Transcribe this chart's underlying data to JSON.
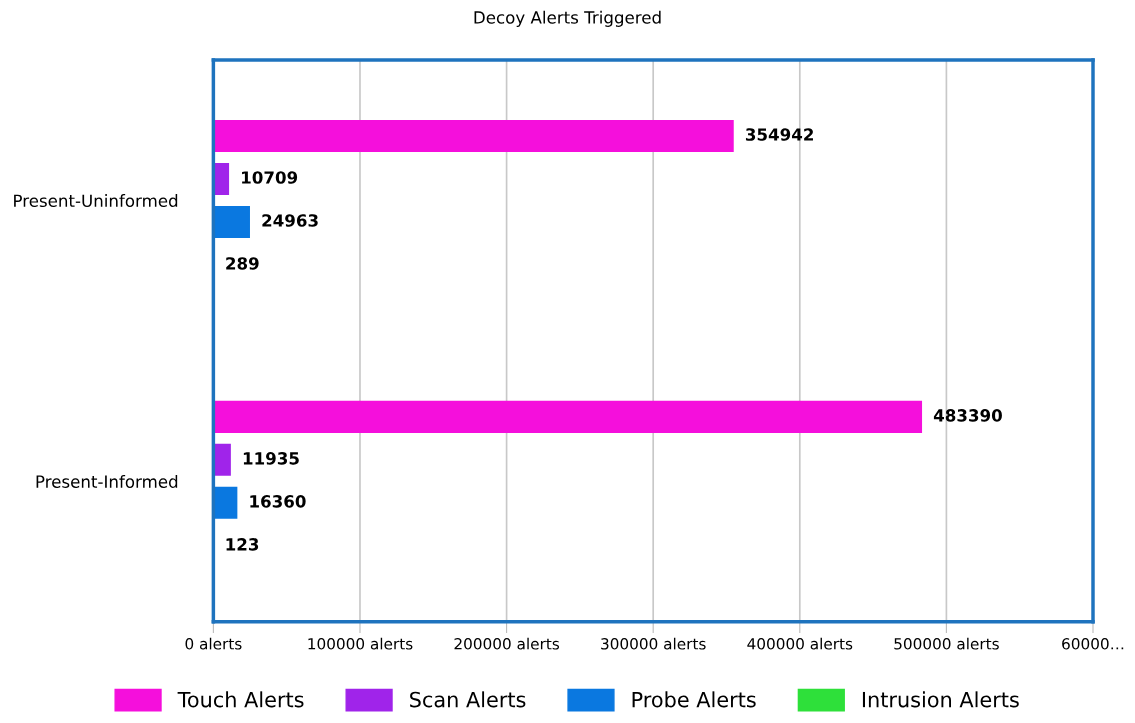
{
  "chart_data": {
    "type": "bar",
    "orientation": "horizontal",
    "title": "Decoy Alerts Triggered",
    "categories": [
      "Present-Uninformed",
      "Present-Informed"
    ],
    "series": [
      {
        "name": "Touch Alerts",
        "color": "#f50fdc",
        "values": [
          354942,
          483390
        ]
      },
      {
        "name": "Scan Alerts",
        "color": "#a024ea",
        "values": [
          10709,
          11935
        ]
      },
      {
        "name": "Probe Alerts",
        "color": "#0a78e0",
        "values": [
          24963,
          16360
        ]
      },
      {
        "name": "Intrusion Alerts",
        "color": "#2ee03a",
        "values": [
          289,
          123
        ]
      }
    ],
    "xlim": [
      0,
      600000
    ],
    "xticks": [
      {
        "value": 0,
        "label": "0 alerts"
      },
      {
        "value": 100000,
        "label": "100000 alerts"
      },
      {
        "value": 200000,
        "label": "200000 alerts"
      },
      {
        "value": 300000,
        "label": "300000 alerts"
      },
      {
        "value": 400000,
        "label": "400000 alerts"
      },
      {
        "value": 500000,
        "label": "500000 alerts"
      },
      {
        "value": 600000,
        "label": "60000…"
      }
    ],
    "data_labels": true,
    "grid": "x",
    "legend": "bottom"
  }
}
